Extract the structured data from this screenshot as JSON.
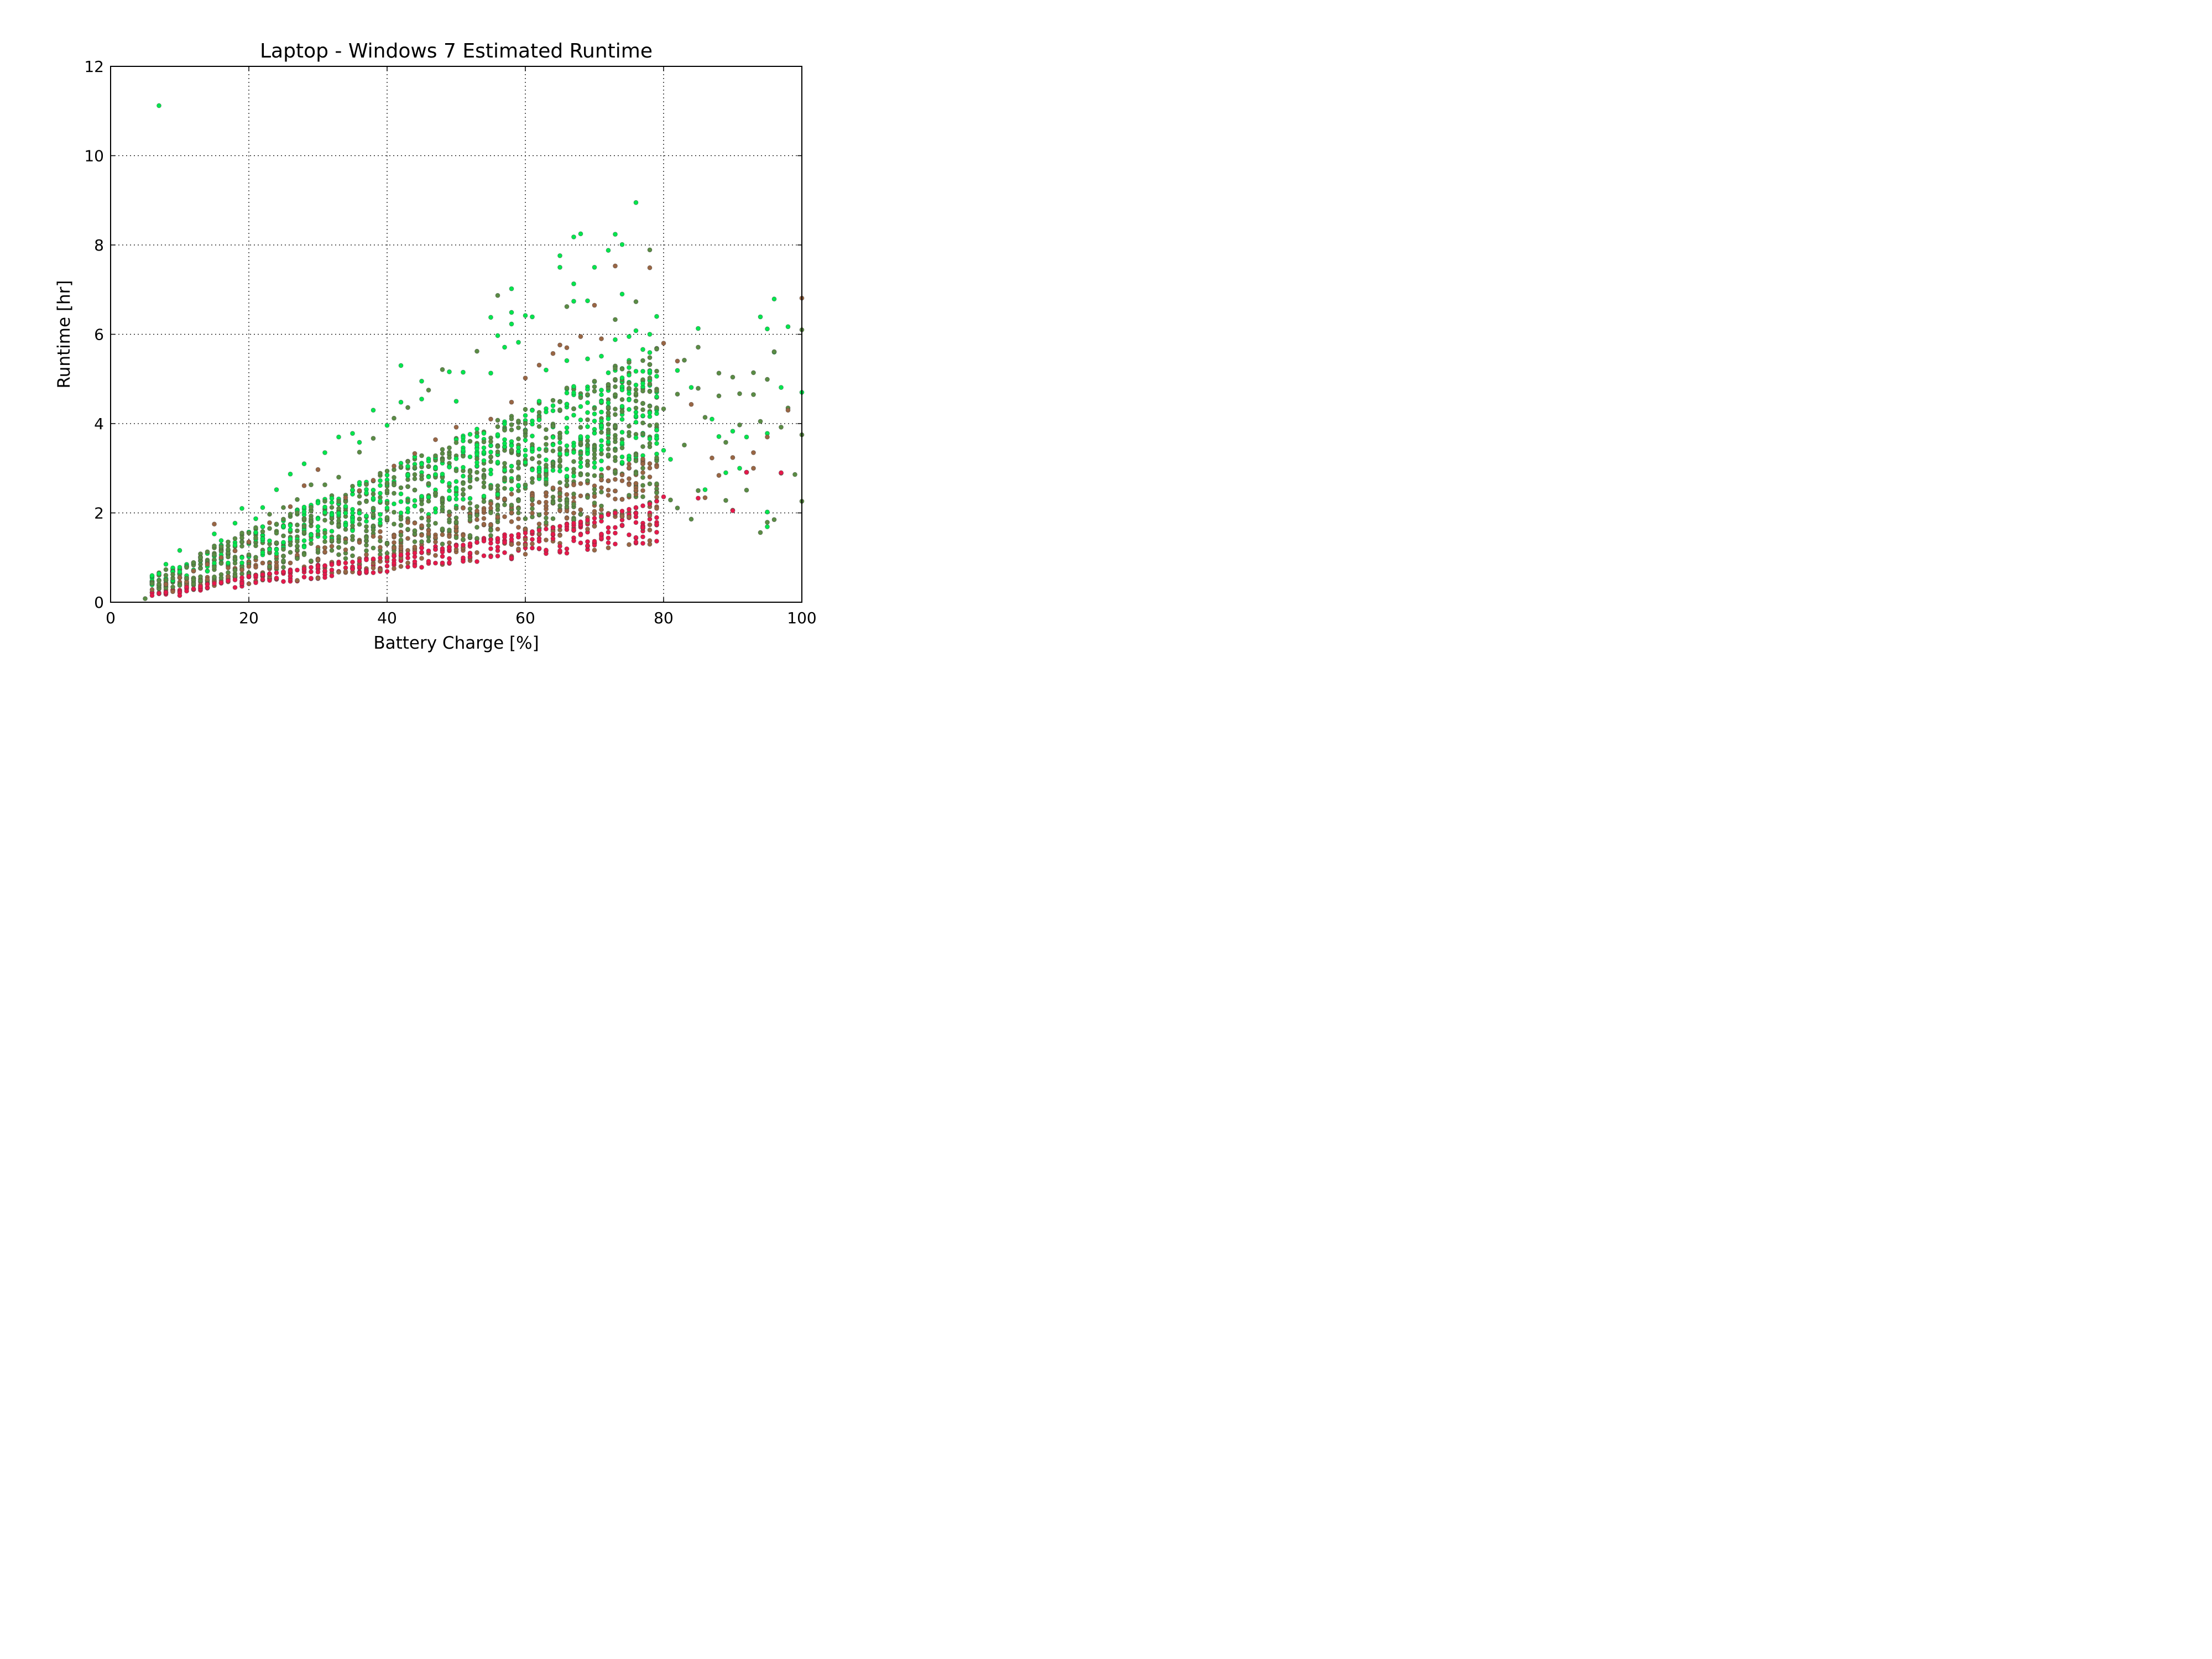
{
  "chart_data": {
    "type": "scatter",
    "title": "Laptop - Windows 7 Estimated Runtime",
    "xlabel": "Battery Charge [%]",
    "ylabel": "Runtime [hr]",
    "xlim": [
      0,
      100
    ],
    "ylim": [
      0,
      12
    ],
    "xticks": [
      "0",
      "20",
      "40",
      "60",
      "80",
      "100"
    ],
    "yticks": [
      "0",
      "2",
      "4",
      "6",
      "8",
      "10",
      "12"
    ],
    "grid": true,
    "legend": "none",
    "colors": {
      "high": "#00e64d",
      "mid": "#5a8c44",
      "mid_alt": "#996644",
      "low": "#e6194b"
    },
    "series": [
      {
        "color_key": "high",
        "points": [
          [
            7,
            11.12
          ],
          [
            76,
            8.95
          ],
          [
            73,
            8.24
          ],
          [
            68,
            8.25
          ],
          [
            67,
            8.18
          ],
          [
            74,
            8.01
          ],
          [
            72,
            7.88
          ],
          [
            65,
            7.76
          ],
          [
            65,
            7.5
          ],
          [
            70,
            7.5
          ],
          [
            67,
            7.13
          ],
          [
            58,
            7.02
          ],
          [
            74,
            6.9
          ],
          [
            67,
            6.74
          ],
          [
            69,
            6.75
          ],
          [
            96,
            6.79
          ],
          [
            94,
            6.39
          ],
          [
            58,
            6.49
          ],
          [
            60,
            6.42
          ],
          [
            61,
            6.39
          ],
          [
            55,
            6.38
          ],
          [
            56,
            5.97
          ],
          [
            58,
            6.23
          ],
          [
            79,
            6.4
          ],
          [
            85,
            6.13
          ],
          [
            95,
            6.12
          ],
          [
            98,
            6.17
          ],
          [
            76,
            6.08
          ],
          [
            78,
            6.0
          ],
          [
            42,
            5.3
          ],
          [
            49,
            5.16
          ],
          [
            51,
            5.15
          ],
          [
            55,
            5.13
          ],
          [
            45,
            4.95
          ],
          [
            50,
            4.5
          ],
          [
            45,
            4.55
          ],
          [
            42,
            4.48
          ],
          [
            38,
            4.3
          ],
          [
            40,
            3.96
          ],
          [
            35,
            3.78
          ],
          [
            36,
            3.58
          ],
          [
            33,
            3.7
          ],
          [
            31,
            3.35
          ],
          [
            28,
            3.1
          ],
          [
            26,
            2.87
          ],
          [
            24,
            2.52
          ],
          [
            22,
            2.12
          ],
          [
            19,
            2.1
          ],
          [
            18,
            1.77
          ],
          [
            21,
            1.87
          ],
          [
            15,
            1.53
          ],
          [
            16,
            1.38
          ],
          [
            10,
            1.16
          ],
          [
            8,
            0.85
          ],
          [
            57,
            5.71
          ],
          [
            59,
            5.82
          ],
          [
            63,
            5.2
          ],
          [
            66,
            5.41
          ],
          [
            69,
            5.45
          ],
          [
            71,
            5.51
          ],
          [
            73,
            5.88
          ],
          [
            75,
            5.95
          ],
          [
            77,
            5.66
          ],
          [
            79,
            5.06
          ],
          [
            82,
            5.19
          ],
          [
            84,
            4.81
          ],
          [
            87,
            4.1
          ],
          [
            88,
            3.71
          ],
          [
            90,
            3.83
          ],
          [
            92,
            3.7
          ],
          [
            95,
            3.78
          ],
          [
            97,
            4.81
          ],
          [
            100,
            4.7
          ],
          [
            96,
            5.6
          ],
          [
            80,
            3.4
          ],
          [
            81,
            3.2
          ],
          [
            86,
            2.52
          ],
          [
            89,
            2.9
          ],
          [
            91,
            3.0
          ],
          [
            95,
            2.02
          ],
          [
            95,
            1.69
          ]
        ]
      },
      {
        "color_key": "mid",
        "points": [
          [
            56,
            6.87
          ],
          [
            66,
            6.62
          ],
          [
            73,
            6.33
          ],
          [
            78,
            7.89
          ],
          [
            76,
            6.73
          ],
          [
            83,
            5.42
          ],
          [
            85,
            5.71
          ],
          [
            88,
            5.13
          ],
          [
            90,
            5.04
          ],
          [
            93,
            5.14
          ],
          [
            96,
            5.61
          ],
          [
            100,
            6.1
          ],
          [
            98,
            4.35
          ],
          [
            95,
            4.99
          ],
          [
            93,
            4.65
          ],
          [
            91,
            4.67
          ],
          [
            88,
            4.62
          ],
          [
            85,
            4.79
          ],
          [
            82,
            4.66
          ],
          [
            80,
            4.33
          ],
          [
            83,
            3.52
          ],
          [
            86,
            4.14
          ],
          [
            89,
            3.58
          ],
          [
            91,
            3.97
          ],
          [
            94,
            4.05
          ],
          [
            97,
            3.92
          ],
          [
            100,
            3.75
          ],
          [
            99,
            2.86
          ],
          [
            100,
            2.26
          ],
          [
            96,
            1.85
          ],
          [
            95,
            1.79
          ],
          [
            94,
            1.56
          ],
          [
            92,
            2.51
          ],
          [
            89,
            2.28
          ],
          [
            85,
            2.5
          ],
          [
            84,
            1.86
          ],
          [
            82,
            2.11
          ],
          [
            79,
            2.45
          ],
          [
            81,
            2.29
          ],
          [
            53,
            5.62
          ],
          [
            48,
            5.21
          ],
          [
            46,
            4.75
          ],
          [
            43,
            4.36
          ],
          [
            41,
            4.12
          ],
          [
            38,
            3.67
          ],
          [
            36,
            3.36
          ],
          [
            33,
            2.8
          ],
          [
            31,
            2.63
          ],
          [
            29,
            2.63
          ],
          [
            27,
            2.3
          ],
          [
            25,
            2.12
          ],
          [
            23,
            1.97
          ],
          [
            21,
            1.67
          ],
          [
            19,
            1.55
          ],
          [
            17,
            1.35
          ],
          [
            15,
            1.26
          ],
          [
            13,
            1.0
          ],
          [
            11,
            0.78
          ],
          [
            9,
            0.62
          ],
          [
            7,
            0.48
          ],
          [
            6,
            0.42
          ],
          [
            5,
            0.08
          ]
        ]
      },
      {
        "color_key": "mid_alt",
        "points": [
          [
            70,
            6.65
          ],
          [
            73,
            7.53
          ],
          [
            78,
            7.49
          ],
          [
            71,
            5.9
          ],
          [
            68,
            5.95
          ],
          [
            65,
            5.76
          ],
          [
            62,
            5.31
          ],
          [
            64,
            5.57
          ],
          [
            66,
            5.7
          ],
          [
            60,
            5.02
          ],
          [
            58,
            4.48
          ],
          [
            55,
            4.1
          ],
          [
            50,
            3.92
          ],
          [
            47,
            3.64
          ],
          [
            44,
            3.33
          ],
          [
            41,
            3.05
          ],
          [
            38,
            2.73
          ],
          [
            36,
            2.5
          ],
          [
            34,
            2.34
          ],
          [
            30,
            2.97
          ],
          [
            28,
            2.61
          ],
          [
            26,
            2.14
          ],
          [
            23,
            1.78
          ],
          [
            15,
            1.75
          ],
          [
            20,
            1.35
          ],
          [
            18,
            1.15
          ],
          [
            16,
            1.0
          ],
          [
            14,
            0.85
          ],
          [
            12,
            0.7
          ],
          [
            10,
            0.55
          ],
          [
            8,
            0.4
          ],
          [
            80,
            5.8
          ],
          [
            82,
            5.4
          ],
          [
            84,
            4.43
          ],
          [
            87,
            3.23
          ],
          [
            90,
            3.24
          ],
          [
            93,
            3.35
          ],
          [
            95,
            3.7
          ],
          [
            98,
            4.3
          ],
          [
            100,
            6.81
          ],
          [
            86,
            2.34
          ],
          [
            88,
            2.84
          ],
          [
            90,
            2.06
          ],
          [
            92,
            2.91
          ],
          [
            97,
            2.89
          ],
          [
            93,
            3.0
          ]
        ]
      },
      {
        "color_key": "low",
        "points": [
          [
            6,
            0.15
          ],
          [
            7,
            0.2
          ],
          [
            8,
            0.22
          ],
          [
            10,
            0.15
          ],
          [
            11,
            0.25
          ],
          [
            12,
            0.3
          ],
          [
            13,
            0.35
          ],
          [
            14,
            0.4
          ],
          [
            15,
            0.42
          ],
          [
            16,
            0.44
          ],
          [
            17,
            0.48
          ],
          [
            18,
            0.5
          ],
          [
            19,
            0.55
          ],
          [
            20,
            0.58
          ],
          [
            21,
            0.6
          ],
          [
            22,
            0.62
          ],
          [
            23,
            0.64
          ],
          [
            24,
            0.66
          ],
          [
            25,
            0.68
          ],
          [
            26,
            0.7
          ],
          [
            27,
            0.72
          ],
          [
            28,
            0.75
          ],
          [
            29,
            0.78
          ],
          [
            30,
            0.8
          ],
          [
            31,
            0.82
          ],
          [
            32,
            0.84
          ],
          [
            33,
            0.86
          ],
          [
            34,
            0.88
          ],
          [
            35,
            0.9
          ],
          [
            36,
            0.92
          ],
          [
            37,
            0.95
          ],
          [
            38,
            0.97
          ],
          [
            39,
            0.99
          ],
          [
            40,
            1.01
          ],
          [
            41,
            1.04
          ],
          [
            42,
            1.06
          ],
          [
            43,
            1.08
          ],
          [
            44,
            1.1
          ],
          [
            45,
            1.12
          ],
          [
            46,
            1.15
          ],
          [
            47,
            1.18
          ],
          [
            48,
            1.2
          ],
          [
            49,
            1.23
          ],
          [
            50,
            1.26
          ],
          [
            51,
            1.28
          ],
          [
            52,
            1.31
          ],
          [
            53,
            1.34
          ],
          [
            54,
            1.37
          ],
          [
            55,
            1.4
          ],
          [
            56,
            1.43
          ],
          [
            57,
            1.46
          ],
          [
            58,
            1.49
          ],
          [
            59,
            1.52
          ],
          [
            60,
            1.55
          ],
          [
            61,
            1.58
          ],
          [
            62,
            1.61
          ],
          [
            63,
            1.64
          ],
          [
            64,
            1.67
          ],
          [
            65,
            1.7
          ],
          [
            66,
            1.74
          ],
          [
            67,
            1.77
          ],
          [
            68,
            1.8
          ],
          [
            69,
            1.84
          ],
          [
            70,
            1.88
          ],
          [
            71,
            1.92
          ],
          [
            72,
            1.96
          ],
          [
            73,
            2.0
          ],
          [
            74,
            2.04
          ],
          [
            75,
            2.08
          ],
          [
            76,
            2.12
          ],
          [
            77,
            2.16
          ],
          [
            78,
            2.2
          ],
          [
            79,
            2.26
          ],
          [
            80,
            2.36
          ],
          [
            85,
            2.33
          ],
          [
            90,
            2.05
          ],
          [
            92,
            2.91
          ],
          [
            97,
            2.9
          ]
        ]
      }
    ]
  }
}
